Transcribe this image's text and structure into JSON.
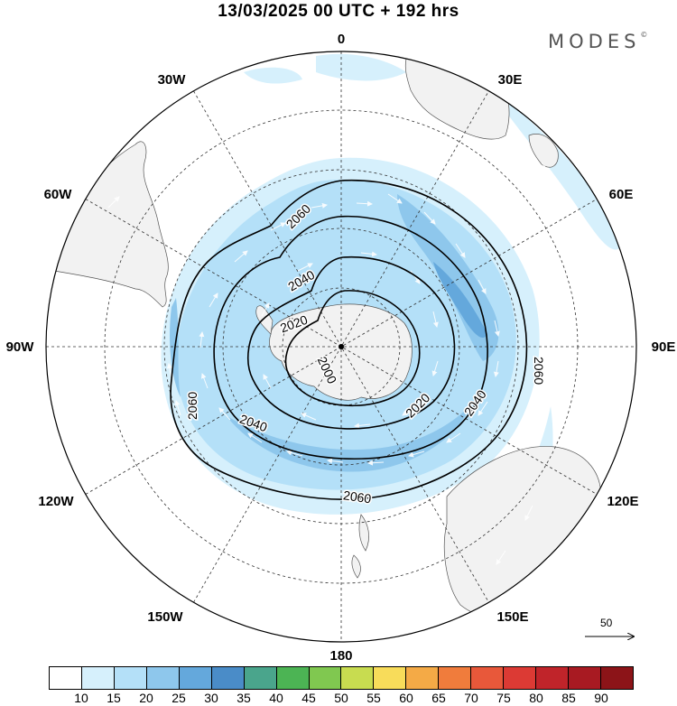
{
  "title": "13/03/2025  00 UTC  + 192 hrs",
  "brand": "MODES",
  "brand_mark": "©",
  "longitude_labels": [
    "0",
    "30E",
    "60E",
    "90E",
    "120E",
    "150E",
    "180",
    "150W",
    "120W",
    "90W",
    "60W",
    "30W"
  ],
  "contour_labels": [
    "2060",
    "2040",
    "2020",
    "2000",
    "2020",
    "2040",
    "2060",
    "2060",
    "2040",
    "2060"
  ],
  "wind_reference": {
    "value": "50"
  },
  "colorbar": {
    "colors": [
      "#ffffff",
      "#d6f0fc",
      "#b4e0f8",
      "#8ec7ec",
      "#64a8dc",
      "#4a8cc8",
      "#4aa58c",
      "#4cb454",
      "#80c850",
      "#c8dc50",
      "#f8dc5a",
      "#f4aa46",
      "#f07c3c",
      "#e8583a",
      "#dc3a34",
      "#c0242a",
      "#a81a22",
      "#8c1418"
    ],
    "labels": [
      "10",
      "15",
      "20",
      "25",
      "30",
      "35",
      "40",
      "45",
      "50",
      "55",
      "60",
      "65",
      "70",
      "75",
      "80",
      "85",
      "90"
    ]
  }
}
